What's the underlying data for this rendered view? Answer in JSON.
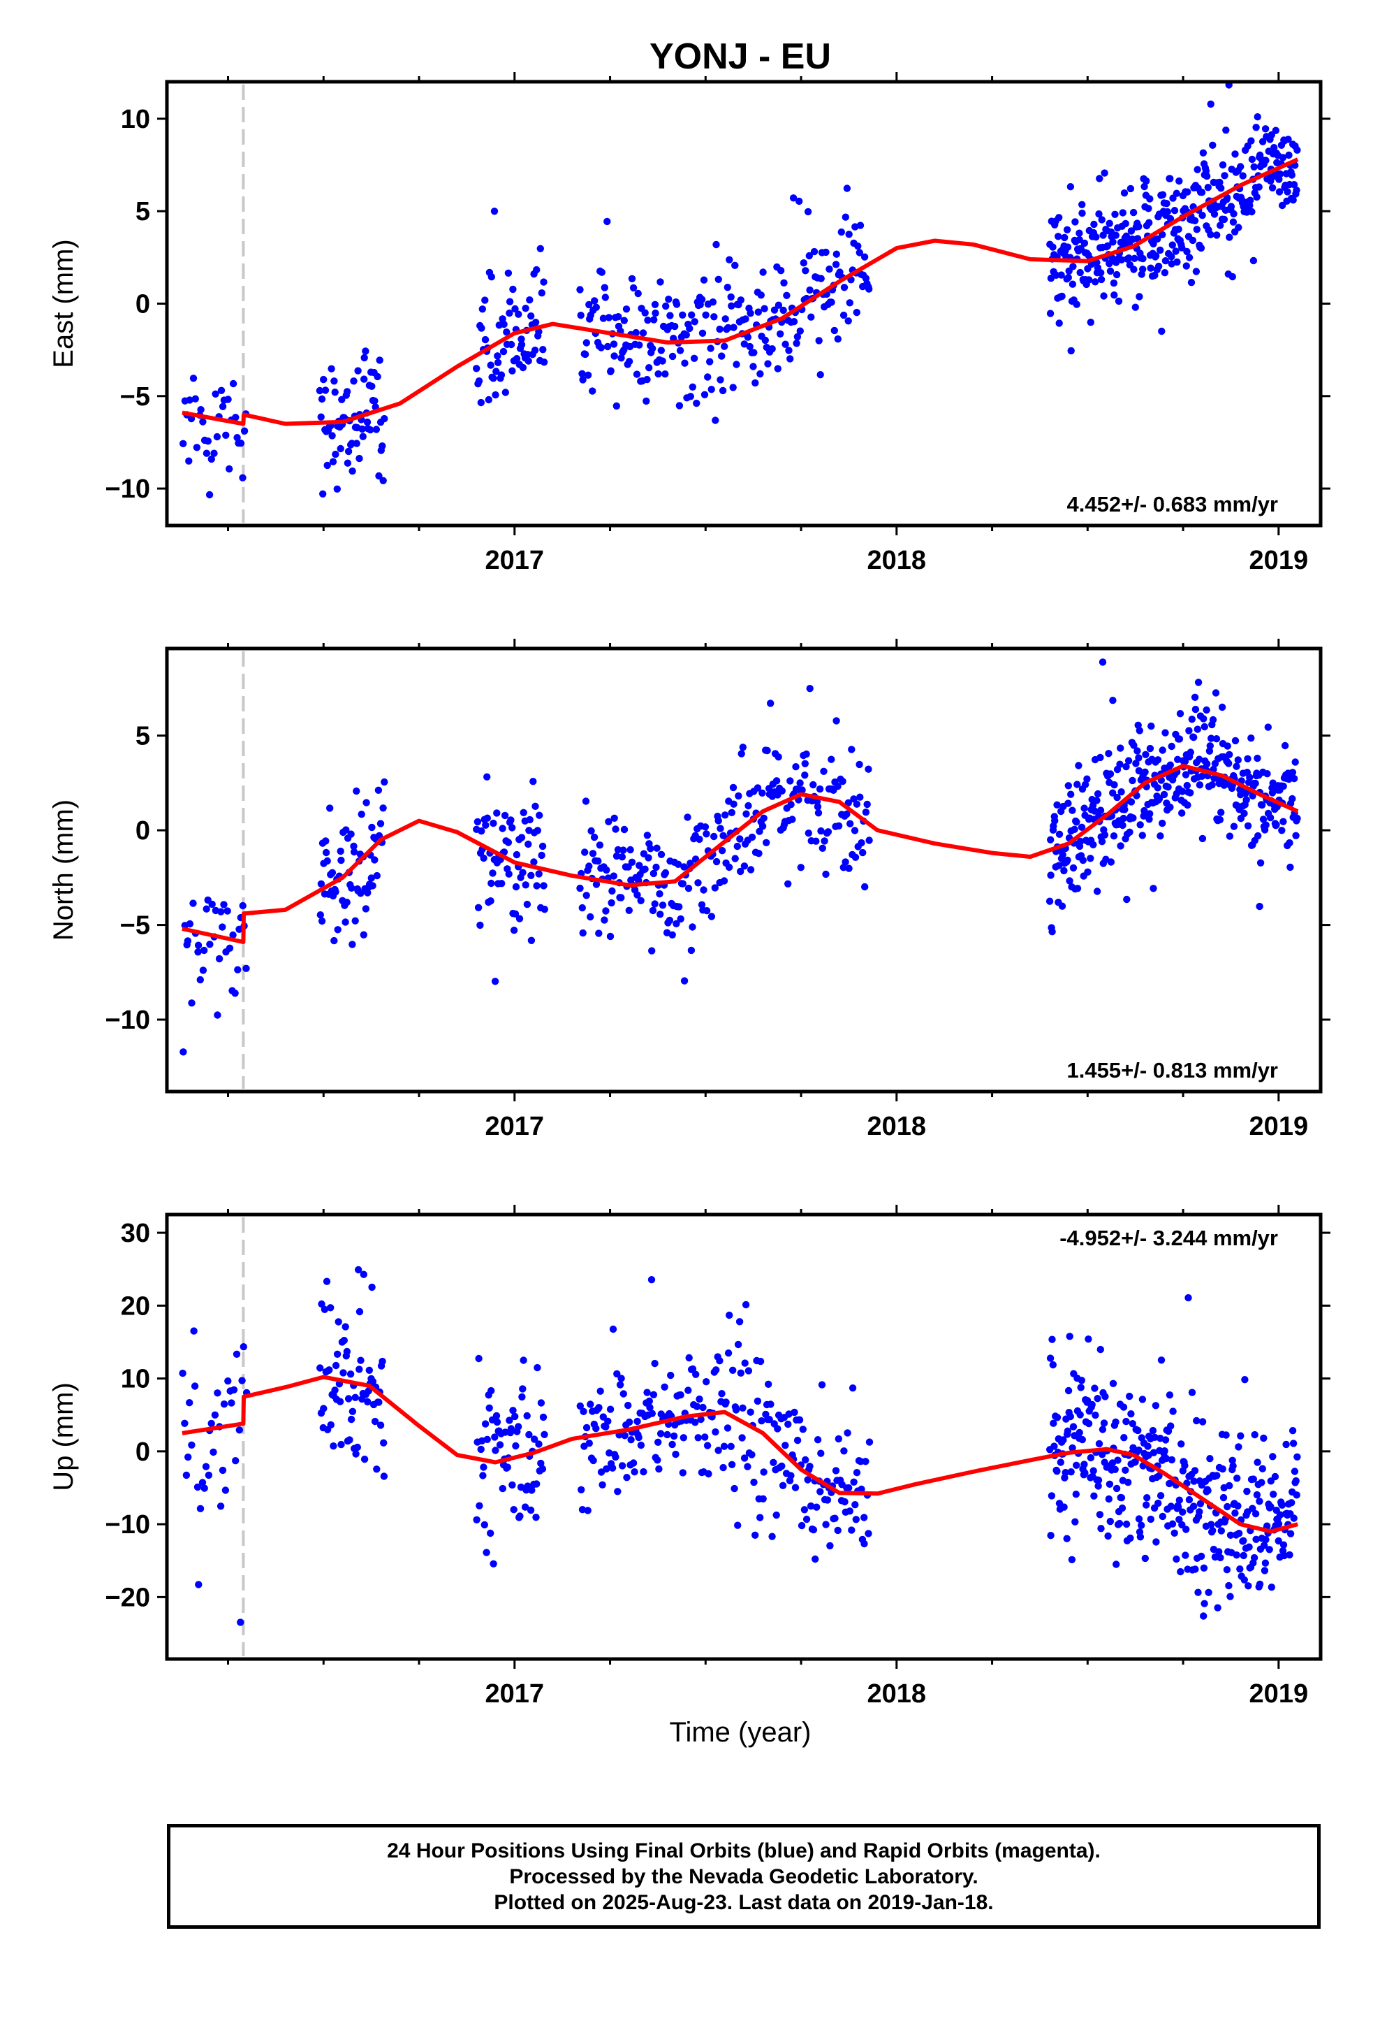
{
  "title": "YONJ - EU",
  "time_label": "Time (year)",
  "colors": {
    "points": "#0000ff",
    "fit": "#ff0000",
    "offset_line": "#c8c8c8",
    "frame": "#000000"
  },
  "footer": {
    "line1": "24 Hour Positions Using Final Orbits (blue) and Rapid Orbits (magenta).",
    "line2": "Processed by the Nevada Geodetic Laboratory.",
    "line3": "Plotted on 2025-Aug-23. Last data on 2019-Jan-18."
  },
  "chart_data": [
    {
      "type": "scatter",
      "name": "east",
      "ylabel": "East (mm)",
      "xlim": [
        2016.09,
        2019.11
      ],
      "ylim": [
        -12,
        12
      ],
      "yticks": [
        -10,
        -5,
        0,
        5,
        10
      ],
      "xticks": [
        2017,
        2018,
        2019
      ],
      "rate_text": "4.452+/- 0.683 mm/yr",
      "rate_position": "bottom-right",
      "offset_x": 2016.29,
      "segments": [
        [
          2016.13,
          2016.3,
          36
        ],
        [
          2016.49,
          2016.66,
          70
        ],
        [
          2016.9,
          2017.08,
          70
        ],
        [
          2017.17,
          2017.93,
          260
        ],
        [
          2018.4,
          2019.05,
          380
        ]
      ],
      "scatter_sd": 1.6,
      "fit": {
        "x": [
          2016.13,
          2016.29,
          2016.291,
          2016.4,
          2016.55,
          2016.7,
          2016.85,
          2017.0,
          2017.1,
          2017.25,
          2017.4,
          2017.55,
          2017.7,
          2017.85,
          2018.0,
          2018.1,
          2018.2,
          2018.35,
          2018.5,
          2018.62,
          2018.75,
          2018.9,
          2019.05
        ],
        "y": [
          -5.9,
          -6.5,
          -6.0,
          -6.5,
          -6.4,
          -5.4,
          -3.4,
          -1.6,
          -1.1,
          -1.6,
          -2.1,
          -2.0,
          -0.8,
          1.2,
          3.0,
          3.4,
          3.2,
          2.4,
          2.3,
          3.1,
          4.7,
          6.4,
          7.8
        ]
      }
    },
    {
      "type": "scatter",
      "name": "north",
      "ylabel": "North (mm)",
      "xlim": [
        2016.09,
        2019.11
      ],
      "ylim": [
        -13.8,
        9.6
      ],
      "yticks": [
        -10,
        -5,
        0,
        5
      ],
      "xticks": [
        2017,
        2018,
        2019
      ],
      "rate_text": "1.455+/- 0.813 mm/yr",
      "rate_position": "bottom-right",
      "offset_x": 2016.29,
      "segments": [
        [
          2016.13,
          2016.3,
          36
        ],
        [
          2016.49,
          2016.66,
          70
        ],
        [
          2016.9,
          2017.08,
          70
        ],
        [
          2017.17,
          2017.93,
          260
        ],
        [
          2018.4,
          2019.05,
          380
        ]
      ],
      "scatter_sd": 1.7,
      "fit": {
        "x": [
          2016.13,
          2016.29,
          2016.291,
          2016.4,
          2016.55,
          2016.65,
          2016.75,
          2016.85,
          2017.0,
          2017.15,
          2017.3,
          2017.42,
          2017.55,
          2017.65,
          2017.75,
          2017.85,
          2017.95,
          2018.1,
          2018.25,
          2018.35,
          2018.45,
          2018.55,
          2018.65,
          2018.75,
          2018.85,
          2018.95,
          2019.05
        ],
        "y": [
          -5.2,
          -5.9,
          -4.4,
          -4.2,
          -2.5,
          -0.5,
          0.5,
          -0.1,
          -1.7,
          -2.4,
          -2.9,
          -2.7,
          -0.6,
          1.0,
          1.9,
          1.5,
          0.0,
          -0.7,
          -1.2,
          -1.4,
          -0.7,
          0.8,
          2.5,
          3.4,
          2.9,
          1.9,
          1.0
        ]
      }
    },
    {
      "type": "scatter",
      "name": "up",
      "ylabel": "Up (mm)",
      "xlim": [
        2016.09,
        2019.11
      ],
      "ylim": [
        -28.5,
        32.5
      ],
      "yticks": [
        -20,
        -10,
        0,
        10,
        20,
        30
      ],
      "xticks": [
        2017,
        2018,
        2019
      ],
      "rate_text": "-4.952+/- 3.244 mm/yr",
      "rate_position": "top-right",
      "offset_x": 2016.29,
      "segments": [
        [
          2016.13,
          2016.3,
          36
        ],
        [
          2016.49,
          2016.66,
          70
        ],
        [
          2016.9,
          2017.08,
          70
        ],
        [
          2017.17,
          2017.93,
          260
        ],
        [
          2018.4,
          2019.05,
          380
        ]
      ],
      "scatter_sd": 5.5,
      "fit": {
        "x": [
          2016.13,
          2016.29,
          2016.291,
          2016.4,
          2016.5,
          2016.62,
          2016.75,
          2016.85,
          2016.95,
          2017.05,
          2017.15,
          2017.3,
          2017.45,
          2017.55,
          2017.65,
          2017.75,
          2017.85,
          2017.95,
          2018.05,
          2018.2,
          2018.35,
          2018.45,
          2018.55,
          2018.62,
          2018.7,
          2018.8,
          2018.9,
          2018.98,
          2019.05
        ],
        "y": [
          2.5,
          3.8,
          7.5,
          8.8,
          10.2,
          9.0,
          3.5,
          -0.5,
          -1.5,
          -0.2,
          1.7,
          3.0,
          4.8,
          5.4,
          2.5,
          -2.5,
          -5.7,
          -5.8,
          -4.5,
          -2.8,
          -1.2,
          -0.2,
          0.3,
          -0.5,
          -3.0,
          -6.5,
          -10.0,
          -11.0,
          -10.0
        ]
      }
    }
  ]
}
